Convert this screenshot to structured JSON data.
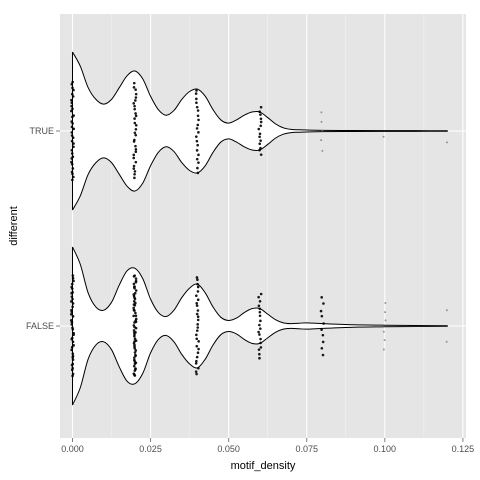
{
  "chart_data": {
    "type": "violin",
    "orientation": "horizontal",
    "xlabel": "motif_density",
    "ylabel": "different",
    "xlim": [
      -0.004,
      0.126
    ],
    "x_ticks": [
      {
        "value": 0.0,
        "label": "0.000"
      },
      {
        "value": 0.025,
        "label": "0.025"
      },
      {
        "value": 0.05,
        "label": "0.050"
      },
      {
        "value": 0.075,
        "label": "0.075"
      },
      {
        "value": 0.1,
        "label": "0.100"
      },
      {
        "value": 0.125,
        "label": "0.125"
      }
    ],
    "categories": [
      "TRUE",
      "FALSE"
    ],
    "grid": true,
    "legend": "none",
    "colors": {
      "panel_background": "#e5e5e5",
      "grid_major": "#ffffff",
      "violin_fill": "#ffffff",
      "violin_outline": "#000000",
      "points": "#000000"
    },
    "series": [
      {
        "name": "TRUE",
        "x": [
          0,
          0.0025,
          0.005,
          0.0075,
          0.01,
          0.0125,
          0.015,
          0.0175,
          0.02,
          0.0225,
          0.025,
          0.0275,
          0.03,
          0.0325,
          0.035,
          0.0375,
          0.04,
          0.0425,
          0.045,
          0.0475,
          0.05,
          0.0525,
          0.055,
          0.0575,
          0.06,
          0.0625,
          0.065,
          0.0675,
          0.07,
          0.0725,
          0.075,
          0.08,
          0.09,
          0.1,
          0.11,
          0.12
        ],
        "half_width": [
          1.0,
          0.82,
          0.55,
          0.4,
          0.34,
          0.4,
          0.55,
          0.7,
          0.76,
          0.66,
          0.44,
          0.27,
          0.2,
          0.26,
          0.4,
          0.5,
          0.53,
          0.44,
          0.27,
          0.14,
          0.1,
          0.14,
          0.2,
          0.24,
          0.24,
          0.17,
          0.09,
          0.04,
          0.02,
          0.015,
          0.012,
          0.008,
          0.006,
          0.005,
          0.004,
          0.003
        ],
        "points": [
          {
            "x": 0.0,
            "spread": 0.62,
            "count": 34
          },
          {
            "x": 0.02,
            "spread": 0.6,
            "count": 30
          },
          {
            "x": 0.04,
            "spread": 0.52,
            "count": 20
          },
          {
            "x": 0.06,
            "spread": 0.3,
            "count": 14
          },
          {
            "x": 0.08,
            "spread": 0.24,
            "count": 5
          },
          {
            "x": 0.1,
            "spread": 0.08,
            "count": 1
          },
          {
            "x": 0.12,
            "spread": 0.16,
            "count": 1
          }
        ]
      },
      {
        "name": "FALSE",
        "x": [
          0,
          0.0025,
          0.005,
          0.0075,
          0.01,
          0.0125,
          0.015,
          0.0175,
          0.02,
          0.0225,
          0.025,
          0.0275,
          0.03,
          0.0325,
          0.035,
          0.0375,
          0.04,
          0.0425,
          0.045,
          0.0475,
          0.05,
          0.0525,
          0.055,
          0.0575,
          0.06,
          0.0625,
          0.065,
          0.0675,
          0.07,
          0.0725,
          0.075,
          0.08,
          0.09,
          0.1,
          0.11,
          0.12
        ],
        "half_width": [
          1.0,
          0.78,
          0.42,
          0.24,
          0.2,
          0.3,
          0.52,
          0.7,
          0.73,
          0.6,
          0.34,
          0.17,
          0.12,
          0.2,
          0.36,
          0.48,
          0.53,
          0.42,
          0.24,
          0.11,
          0.07,
          0.1,
          0.17,
          0.22,
          0.22,
          0.15,
          0.08,
          0.04,
          0.03,
          0.035,
          0.04,
          0.03,
          0.015,
          0.01,
          0.006,
          0.003
        ],
        "points": [
          {
            "x": 0.0,
            "spread": 0.63,
            "count": 40
          },
          {
            "x": 0.02,
            "spread": 0.64,
            "count": 60
          },
          {
            "x": 0.04,
            "spread": 0.62,
            "count": 28
          },
          {
            "x": 0.06,
            "spread": 0.4,
            "count": 18
          },
          {
            "x": 0.08,
            "spread": 0.36,
            "count": 10
          },
          {
            "x": 0.1,
            "spread": 0.3,
            "count": 6
          },
          {
            "x": 0.12,
            "spread": 0.2,
            "count": 2
          }
        ]
      }
    ]
  }
}
